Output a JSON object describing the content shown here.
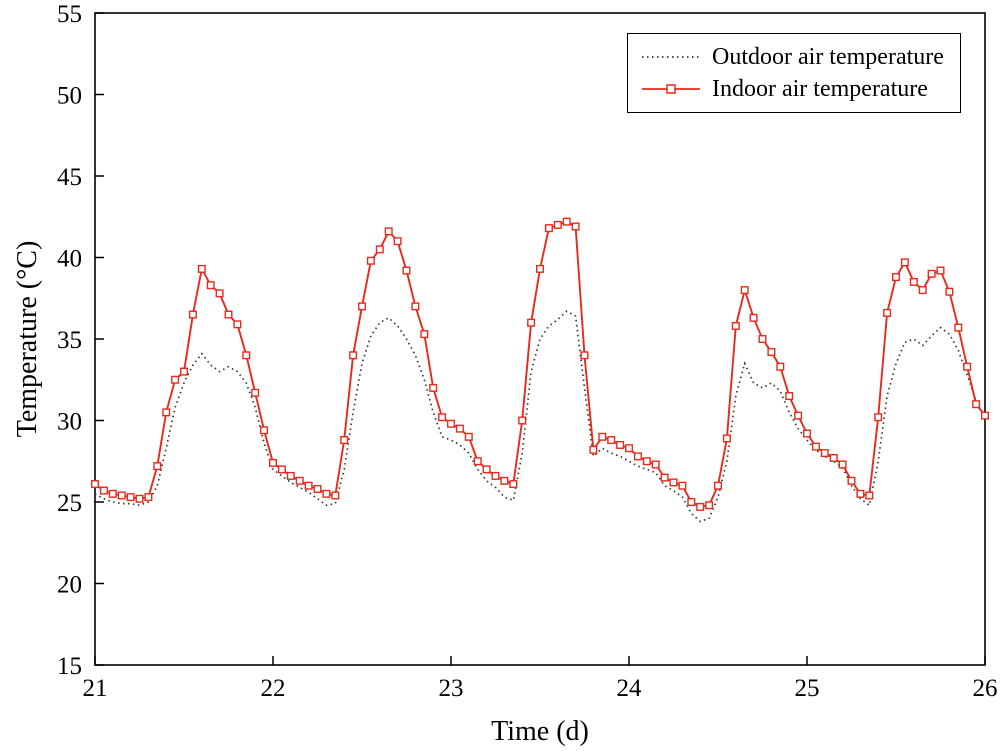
{
  "figure": {
    "background": "#ffffff",
    "frame_color": "#000000"
  },
  "chart_data": {
    "type": "line",
    "title": "",
    "xlabel": "Time (d)",
    "ylabel": "Temperature (°C)",
    "xlim": [
      21,
      26
    ],
    "ylim": [
      15,
      55
    ],
    "x_tick_step": 1,
    "y_tick_step": 5,
    "grid": false,
    "legend_position": "top-right",
    "x": [
      21.0,
      21.05,
      21.1,
      21.15,
      21.2,
      21.25,
      21.3,
      21.35,
      21.4,
      21.45,
      21.5,
      21.55,
      21.6,
      21.65,
      21.7,
      21.75,
      21.8,
      21.85,
      21.9,
      21.95,
      22.0,
      22.05,
      22.1,
      22.15,
      22.2,
      22.25,
      22.3,
      22.35,
      22.4,
      22.45,
      22.5,
      22.55,
      22.6,
      22.65,
      22.7,
      22.75,
      22.8,
      22.85,
      22.9,
      22.95,
      23.0,
      23.05,
      23.1,
      23.15,
      23.2,
      23.25,
      23.3,
      23.35,
      23.4,
      23.45,
      23.5,
      23.55,
      23.6,
      23.65,
      23.7,
      23.75,
      23.8,
      23.85,
      23.9,
      23.95,
      24.0,
      24.05,
      24.1,
      24.15,
      24.2,
      24.25,
      24.3,
      24.35,
      24.4,
      24.45,
      24.5,
      24.55,
      24.6,
      24.65,
      24.7,
      24.75,
      24.8,
      24.85,
      24.9,
      24.95,
      25.0,
      25.05,
      25.1,
      25.15,
      25.2,
      25.25,
      25.3,
      25.35,
      25.4,
      25.45,
      25.5,
      25.55,
      25.6,
      25.65,
      25.7,
      25.75,
      25.8,
      25.85,
      25.9,
      25.95,
      26.0
    ],
    "series": [
      {
        "name": "Outdoor air temperature",
        "color": "#333333",
        "style": "dotted",
        "marker": "none",
        "values": [
          25.5,
          25.2,
          25.0,
          24.9,
          24.9,
          24.8,
          25.0,
          26.0,
          28.3,
          30.8,
          32.3,
          33.4,
          34.1,
          33.4,
          33.0,
          33.3,
          33.0,
          32.3,
          30.8,
          28.6,
          27.0,
          26.6,
          26.2,
          25.9,
          25.6,
          25.2,
          24.8,
          24.9,
          27.0,
          30.5,
          33.5,
          35.2,
          36.0,
          36.3,
          35.8,
          35.0,
          34.0,
          32.5,
          30.5,
          29.0,
          28.8,
          28.5,
          28.0,
          27.0,
          26.3,
          25.9,
          25.3,
          25.1,
          28.0,
          33.0,
          35.0,
          35.8,
          36.2,
          36.7,
          36.4,
          32.0,
          27.8,
          28.3,
          28.0,
          27.8,
          27.5,
          27.2,
          27.0,
          26.8,
          26.0,
          25.7,
          25.3,
          24.3,
          23.8,
          24.0,
          25.3,
          27.5,
          31.5,
          33.5,
          32.3,
          32.0,
          32.3,
          31.8,
          30.5,
          29.5,
          28.8,
          28.2,
          27.8,
          27.5,
          27.1,
          26.0,
          25.2,
          24.8,
          27.5,
          31.5,
          33.5,
          34.8,
          35.0,
          34.6,
          35.2,
          35.7,
          35.3,
          34.3,
          32.8,
          31.2,
          30.2
        ]
      },
      {
        "name": "Indoor air temperature",
        "color": "#e8291c",
        "style": "solid",
        "marker": "open-square",
        "values": [
          26.1,
          25.7,
          25.5,
          25.4,
          25.3,
          25.2,
          25.3,
          27.2,
          30.5,
          32.5,
          33.0,
          36.5,
          39.3,
          38.3,
          37.8,
          36.5,
          35.9,
          34.0,
          31.7,
          29.4,
          27.4,
          27.0,
          26.6,
          26.3,
          26.0,
          25.8,
          25.5,
          25.4,
          28.8,
          34.0,
          37.0,
          39.8,
          40.5,
          41.6,
          41.0,
          39.2,
          37.0,
          35.3,
          32.0,
          30.2,
          29.8,
          29.5,
          29.0,
          27.5,
          27.0,
          26.6,
          26.3,
          26.1,
          30.0,
          36.0,
          39.3,
          41.8,
          42.0,
          42.2,
          41.9,
          34.0,
          28.2,
          29.0,
          28.8,
          28.5,
          28.3,
          27.8,
          27.5,
          27.3,
          26.5,
          26.2,
          26.0,
          25.0,
          24.7,
          24.8,
          26.0,
          28.9,
          35.8,
          38.0,
          36.3,
          35.0,
          34.2,
          33.3,
          31.5,
          30.3,
          29.2,
          28.4,
          28.0,
          27.7,
          27.3,
          26.3,
          25.5,
          25.4,
          30.2,
          36.6,
          38.8,
          39.7,
          38.5,
          38.0,
          39.0,
          39.2,
          37.9,
          35.7,
          33.3,
          31.0,
          30.3
        ]
      }
    ]
  }
}
